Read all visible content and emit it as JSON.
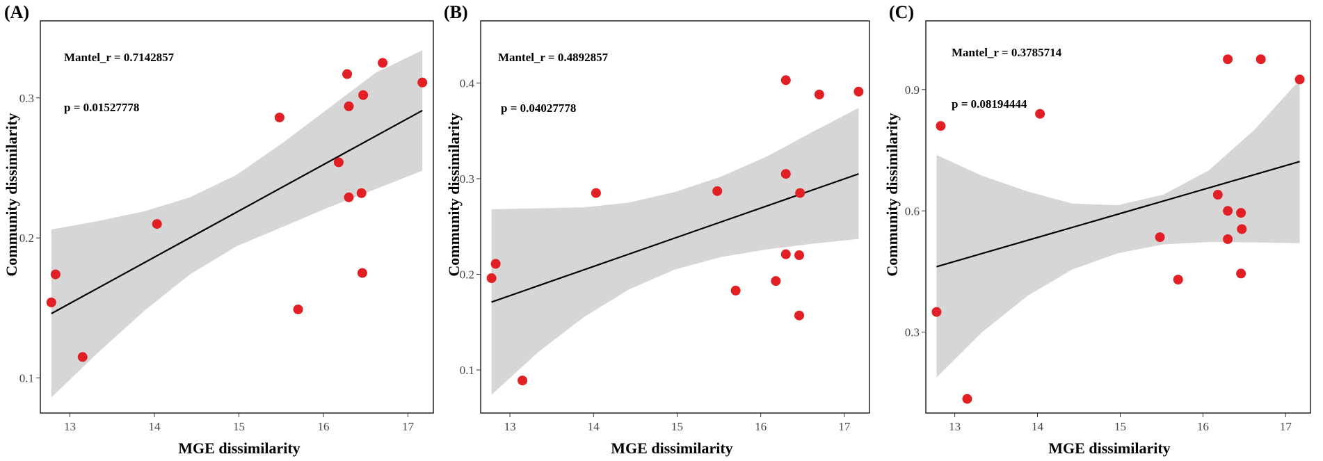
{
  "chart_data": [
    {
      "type": "scatter",
      "panel_label": "(A)",
      "xlabel": "MGE dissimilarity",
      "ylabel": "Community dissimilarity",
      "annotations": [
        "Mantel_r = 0.7142857",
        "p = 0.01527778"
      ],
      "xlim": [
        12.65,
        17.3
      ],
      "ylim": [
        0.075,
        0.355
      ],
      "xticks": [
        13,
        14,
        15,
        16,
        17
      ],
      "xtick_labels": [
        "13",
        "14",
        "15",
        "16",
        "17"
      ],
      "yticks": [
        0.1,
        0.2,
        0.3
      ],
      "ytick_labels": [
        "0.1",
        "0.2",
        "0.3"
      ],
      "x": [
        12.78,
        12.83,
        13.15,
        14.03,
        15.48,
        15.7,
        16.18,
        16.28,
        16.3,
        16.3,
        16.45,
        16.46,
        16.47,
        16.7,
        17.17
      ],
      "y": [
        0.154,
        0.174,
        0.115,
        0.21,
        0.286,
        0.149,
        0.254,
        0.317,
        0.294,
        0.229,
        0.232,
        0.175,
        0.302,
        0.325,
        0.311
      ],
      "fit_line": {
        "x": [
          12.78,
          17.17
        ],
        "y": [
          0.146,
          0.291
        ]
      },
      "confidence_band": {
        "x": [
          12.78,
          13.33,
          13.88,
          14.42,
          14.97,
          15.52,
          16.07,
          16.62,
          17.17
        ],
        "lower": [
          0.086,
          0.118,
          0.148,
          0.174,
          0.194,
          0.208,
          0.222,
          0.235,
          0.248
        ],
        "upper": [
          0.206,
          0.212,
          0.219,
          0.229,
          0.245,
          0.268,
          0.293,
          0.318,
          0.334
        ]
      }
    },
    {
      "type": "scatter",
      "panel_label": "(B)",
      "xlabel": "MGE dissimilarity",
      "ylabel": "Community dissimilarity",
      "annotations": [
        "Mantel_r = 0.4892857",
        "p = 0.04027778"
      ],
      "xlim": [
        12.65,
        17.3
      ],
      "ylim": [
        0.055,
        0.465
      ],
      "xticks": [
        13,
        14,
        15,
        16,
        17
      ],
      "xtick_labels": [
        "13",
        "14",
        "15",
        "16",
        "17"
      ],
      "yticks": [
        0.1,
        0.2,
        0.3,
        0.4
      ],
      "ytick_labels": [
        "0.1",
        "0.2",
        "0.3",
        "0.4"
      ],
      "x": [
        12.78,
        12.83,
        13.15,
        14.03,
        15.48,
        15.7,
        16.18,
        16.3,
        16.3,
        16.46,
        16.46,
        16.47,
        16.3,
        16.7,
        17.17
      ],
      "y": [
        0.196,
        0.211,
        0.089,
        0.285,
        0.287,
        0.183,
        0.193,
        0.305,
        0.221,
        0.22,
        0.157,
        0.285,
        0.403,
        0.388,
        0.391
      ],
      "fit_line": {
        "x": [
          12.78,
          17.17
        ],
        "y": [
          0.171,
          0.305
        ]
      },
      "confidence_band": {
        "x": [
          12.78,
          13.33,
          13.88,
          14.42,
          14.97,
          15.52,
          16.07,
          16.62,
          17.17
        ],
        "lower": [
          0.074,
          0.118,
          0.155,
          0.184,
          0.205,
          0.218,
          0.226,
          0.232,
          0.237
        ],
        "upper": [
          0.268,
          0.269,
          0.27,
          0.275,
          0.286,
          0.302,
          0.323,
          0.349,
          0.374
        ]
      }
    },
    {
      "type": "scatter",
      "panel_label": "(C)",
      "xlabel": "MGE dissimilarity",
      "ylabel": "Community dissimilarity",
      "annotations": [
        "Mantel_r = 0.3785714",
        "p = 0.08194444"
      ],
      "xlim": [
        12.65,
        17.3
      ],
      "ylim": [
        0.1,
        1.07
      ],
      "xticks": [
        13,
        14,
        15,
        16,
        17
      ],
      "xtick_labels": [
        "13",
        "14",
        "15",
        "16",
        "17"
      ],
      "yticks": [
        0.3,
        0.6,
        0.9
      ],
      "ytick_labels": [
        "0.3",
        "0.6",
        "0.9"
      ],
      "x": [
        12.78,
        12.83,
        13.15,
        14.03,
        15.48,
        15.7,
        16.18,
        16.3,
        16.3,
        16.46,
        16.46,
        16.47,
        16.3,
        16.7,
        17.17
      ],
      "y": [
        0.35,
        0.81,
        0.135,
        0.84,
        0.535,
        0.43,
        0.64,
        0.6,
        0.53,
        0.595,
        0.445,
        0.555,
        0.975,
        0.975,
        0.925
      ],
      "fit_line": {
        "x": [
          12.78,
          17.17
        ],
        "y": [
          0.462,
          0.722
        ]
      },
      "confidence_band": {
        "x": [
          12.78,
          13.33,
          13.88,
          14.42,
          14.97,
          15.52,
          16.07,
          16.62,
          17.17
        ],
        "lower": [
          0.188,
          0.3,
          0.39,
          0.455,
          0.495,
          0.517,
          0.523,
          0.522,
          0.52
        ],
        "upper": [
          0.738,
          0.687,
          0.648,
          0.618,
          0.614,
          0.64,
          0.7,
          0.8,
          0.924
        ]
      }
    }
  ]
}
